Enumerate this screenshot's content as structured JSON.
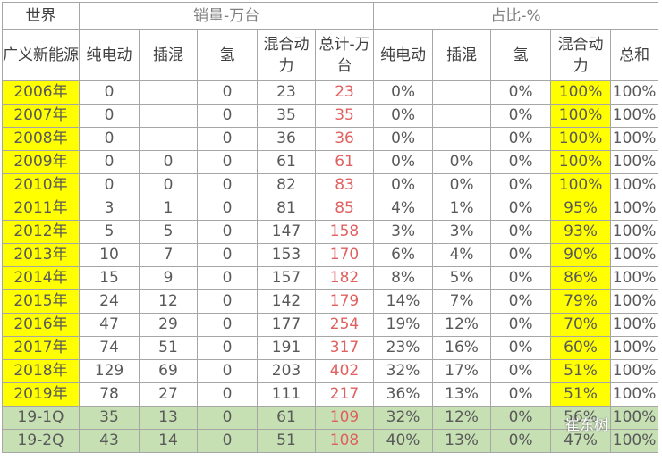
{
  "header": {
    "corner_top": "世界",
    "corner_bottom": "广义新能源",
    "group_sales": "销量-万台",
    "group_share": "占比-%",
    "columns": [
      "纯电动",
      "插混",
      "氢",
      "混合动力",
      "总计-万台",
      "纯电动",
      "插混",
      "氢",
      "混合动力",
      "总和"
    ]
  },
  "table": {
    "rows": [
      [
        "2006年",
        0,
        null,
        0,
        23,
        23,
        "0%",
        null,
        "0%",
        "100%",
        "100%"
      ],
      [
        "2007年",
        0,
        null,
        0,
        35,
        35,
        "0%",
        null,
        "0%",
        "100%",
        "100%"
      ],
      [
        "2008年",
        0,
        null,
        0,
        36,
        36,
        "0%",
        null,
        "0%",
        "100%",
        "100%"
      ],
      [
        "2009年",
        0,
        0,
        0,
        61,
        61,
        "0%",
        "0%",
        "0%",
        "100%",
        "100%"
      ],
      [
        "2010年",
        0,
        0,
        0,
        82,
        83,
        "0%",
        "0%",
        "0%",
        "100%",
        "100%"
      ],
      [
        "2011年",
        3,
        1,
        0,
        81,
        85,
        "4%",
        "1%",
        "0%",
        "95%",
        "100%"
      ],
      [
        "2012年",
        5,
        5,
        0,
        147,
        158,
        "3%",
        "3%",
        "0%",
        "93%",
        "100%"
      ],
      [
        "2013年",
        10,
        7,
        0,
        153,
        170,
        "6%",
        "4%",
        "0%",
        "90%",
        "100%"
      ],
      [
        "2014年",
        15,
        9,
        0,
        157,
        182,
        "8%",
        "5%",
        "0%",
        "86%",
        "100%"
      ],
      [
        "2015年",
        24,
        12,
        0,
        142,
        179,
        "14%",
        "7%",
        "0%",
        "79%",
        "100%"
      ],
      [
        "2016年",
        47,
        29,
        0,
        177,
        254,
        "19%",
        "12%",
        "0%",
        "70%",
        "100%"
      ],
      [
        "2017年",
        74,
        51,
        0,
        191,
        317,
        "23%",
        "16%",
        "0%",
        "60%",
        "100%"
      ],
      [
        "2018年",
        129,
        69,
        0,
        203,
        402,
        "32%",
        "17%",
        "0%",
        "51%",
        "100%"
      ],
      [
        "2019年",
        78,
        27,
        0,
        111,
        217,
        "36%",
        "13%",
        "0%",
        "51%",
        "100%"
      ],
      [
        "19-1Q",
        35,
        13,
        0,
        61,
        109,
        "32%",
        "12%",
        "0%",
        "56%",
        "100%"
      ],
      [
        "19-2Q",
        43,
        14,
        0,
        51,
        108,
        "40%",
        "13%",
        "0%",
        "47%",
        "100%"
      ]
    ]
  },
  "watermark": "崔东树"
}
